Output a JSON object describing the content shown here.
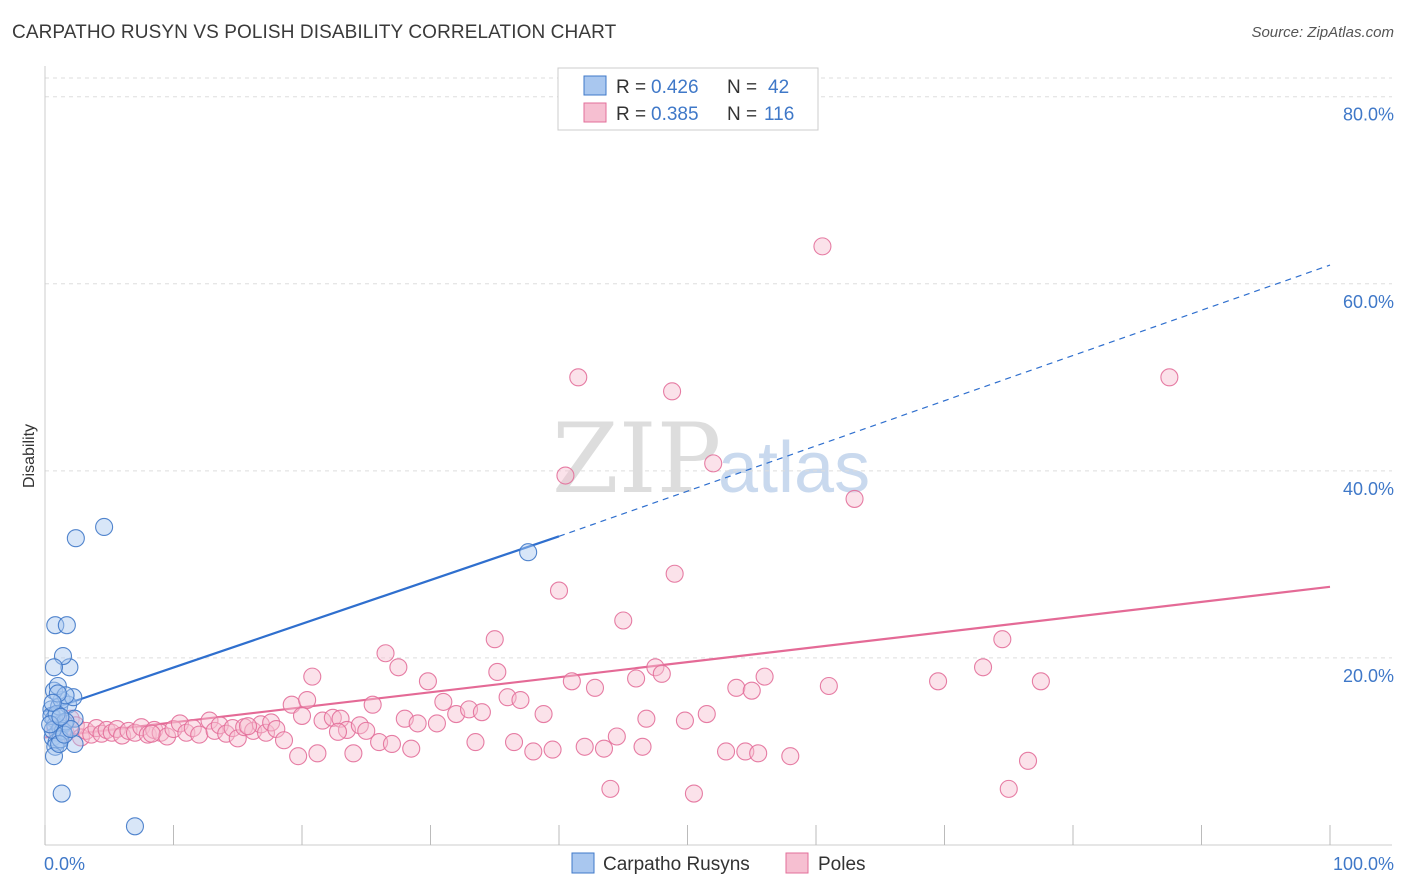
{
  "title": "CARPATHO RUSYN VS POLISH DISABILITY CORRELATION CHART",
  "source": "Source: ZipAtlas.com",
  "watermark": {
    "zip": "ZIP",
    "atlas": "atlas"
  },
  "colors": {
    "blue": "#3f78c8",
    "blue_fill": "#a9c7ef",
    "blue_line": "#2f6fce",
    "pink": "#e36f9a",
    "pink_fill": "#f6bfd1",
    "pink_line": "#e46a96",
    "grid": "#dddddd",
    "axis_label": "#3f78c8"
  },
  "legend": {
    "rows": [
      {
        "r_label": "R = ",
        "r_value": "0.426",
        "n_label": "N = ",
        "n_value": "42",
        "series": "blue"
      },
      {
        "r_label": "R = ",
        "r_value": "0.385",
        "n_label": "N = ",
        "n_value": "116",
        "series": "pink"
      }
    ]
  },
  "chart_data": {
    "type": "scatter",
    "title": "CARPATHO RUSYN VS POLISH DISABILITY CORRELATION CHART",
    "xlabel": "",
    "ylabel": "Disability",
    "xlim": [
      0,
      100
    ],
    "ylim": [
      0,
      82
    ],
    "x_ticks": [
      0,
      10,
      20,
      30,
      40,
      50,
      60,
      70,
      80,
      90,
      100
    ],
    "x_tick_labels": {
      "0": "0.0%",
      "100": "100.0%"
    },
    "y_ticks": [
      20,
      40,
      60,
      80
    ],
    "y_tick_labels": [
      "20.0%",
      "40.0%",
      "60.0%",
      "80.0%"
    ],
    "grid": true,
    "legend_placement": "top-center",
    "series": [
      {
        "name": "Carpatho Rusyns",
        "color": "blue",
        "trend": {
          "x0": 0,
          "y0": 14.3,
          "x1": 40,
          "y1": 33.0,
          "dashed_to_x": 100,
          "dashed_to_y": 62
        },
        "points": [
          [
            0.5,
            14.5
          ],
          [
            0.7,
            13.5
          ],
          [
            0.8,
            12.8
          ],
          [
            1.0,
            12.0
          ],
          [
            0.6,
            11.5
          ],
          [
            0.9,
            11.0
          ],
          [
            1.2,
            12.5
          ],
          [
            1.5,
            13.0
          ],
          [
            0.5,
            13.8
          ],
          [
            1.1,
            14.8
          ],
          [
            1.3,
            15.5
          ],
          [
            1.8,
            15.0
          ],
          [
            2.2,
            15.8
          ],
          [
            0.7,
            16.5
          ],
          [
            1.0,
            17.0
          ],
          [
            1.6,
            16.0
          ],
          [
            1.4,
            12.2
          ],
          [
            0.8,
            10.5
          ],
          [
            2.3,
            10.8
          ],
          [
            0.7,
            9.5
          ],
          [
            1.9,
            19.0
          ],
          [
            1.4,
            20.2
          ],
          [
            0.8,
            23.5
          ],
          [
            1.7,
            23.5
          ],
          [
            0.7,
            19.0
          ],
          [
            2.3,
            13.5
          ],
          [
            1.2,
            11.3
          ],
          [
            0.6,
            12.3
          ],
          [
            1.1,
            10.8
          ],
          [
            1.3,
            5.5
          ],
          [
            7.0,
            2.0
          ],
          [
            4.6,
            34.0
          ],
          [
            2.4,
            32.8
          ],
          [
            37.6,
            31.3
          ],
          [
            1.6,
            13.2
          ],
          [
            0.9,
            14.0
          ],
          [
            0.4,
            12.9
          ],
          [
            1.0,
            16.2
          ],
          [
            1.5,
            11.8
          ],
          [
            2.0,
            12.4
          ],
          [
            0.6,
            15.2
          ],
          [
            1.2,
            13.7
          ]
        ]
      },
      {
        "name": "Poles",
        "color": "pink",
        "trend": {
          "x0": 0,
          "y0": 11.5,
          "x1": 100,
          "y1": 27.6
        },
        "points": [
          [
            0.8,
            12.5
          ],
          [
            1.2,
            13.0
          ],
          [
            1.6,
            12.0
          ],
          [
            2.0,
            13.5
          ],
          [
            2.4,
            12.8
          ],
          [
            2.8,
            11.5
          ],
          [
            3.2,
            12.2
          ],
          [
            3.6,
            11.8
          ],
          [
            4.0,
            12.5
          ],
          [
            4.4,
            11.9
          ],
          [
            4.8,
            12.3
          ],
          [
            5.2,
            12.0
          ],
          [
            5.6,
            12.4
          ],
          [
            6.0,
            11.7
          ],
          [
            6.5,
            12.2
          ],
          [
            7.0,
            12.0
          ],
          [
            7.5,
            12.6
          ],
          [
            8.0,
            11.8
          ],
          [
            8.5,
            12.3
          ],
          [
            9.0,
            12.0
          ],
          [
            9.5,
            11.6
          ],
          [
            10.0,
            12.4
          ],
          [
            10.5,
            13.0
          ],
          [
            11.0,
            12.0
          ],
          [
            11.5,
            12.5
          ],
          [
            12.0,
            11.8
          ],
          [
            12.8,
            13.3
          ],
          [
            13.2,
            12.2
          ],
          [
            13.6,
            12.8
          ],
          [
            14.1,
            11.9
          ],
          [
            14.6,
            12.5
          ],
          [
            15.0,
            11.4
          ],
          [
            15.5,
            12.6
          ],
          [
            16.2,
            12.2
          ],
          [
            16.8,
            12.9
          ],
          [
            17.2,
            12.0
          ],
          [
            17.6,
            13.1
          ],
          [
            18.0,
            12.4
          ],
          [
            18.6,
            11.2
          ],
          [
            19.2,
            15.0
          ],
          [
            19.7,
            9.5
          ],
          [
            20.4,
            15.5
          ],
          [
            20.8,
            18.0
          ],
          [
            21.2,
            9.8
          ],
          [
            21.6,
            13.3
          ],
          [
            22.4,
            13.6
          ],
          [
            23.0,
            13.5
          ],
          [
            23.5,
            12.3
          ],
          [
            24.0,
            9.8
          ],
          [
            24.5,
            12.8
          ],
          [
            25.0,
            12.2
          ],
          [
            25.5,
            15.0
          ],
          [
            26.0,
            11.0
          ],
          [
            26.5,
            20.5
          ],
          [
            27.0,
            10.8
          ],
          [
            27.5,
            19.0
          ],
          [
            28.0,
            13.5
          ],
          [
            28.5,
            10.3
          ],
          [
            29.0,
            13.0
          ],
          [
            29.8,
            17.5
          ],
          [
            31.0,
            15.3
          ],
          [
            32.0,
            14.0
          ],
          [
            33.0,
            14.5
          ],
          [
            33.5,
            11.0
          ],
          [
            34.0,
            14.2
          ],
          [
            35.0,
            22.0
          ],
          [
            35.2,
            18.5
          ],
          [
            36.0,
            15.8
          ],
          [
            36.5,
            11.0
          ],
          [
            37.0,
            15.5
          ],
          [
            38.0,
            10.0
          ],
          [
            38.8,
            14.0
          ],
          [
            39.5,
            10.2
          ],
          [
            40.0,
            27.2
          ],
          [
            40.5,
            39.5
          ],
          [
            41.0,
            17.5
          ],
          [
            41.5,
            50.0
          ],
          [
            42.0,
            10.5
          ],
          [
            42.8,
            16.8
          ],
          [
            43.5,
            10.3
          ],
          [
            44.0,
            6.0
          ],
          [
            45.0,
            24.0
          ],
          [
            46.0,
            17.8
          ],
          [
            46.5,
            10.5
          ],
          [
            46.8,
            13.5
          ],
          [
            47.5,
            19.0
          ],
          [
            48.0,
            18.3
          ],
          [
            48.8,
            48.5
          ],
          [
            49.0,
            29.0
          ],
          [
            49.8,
            13.3
          ],
          [
            50.5,
            5.5
          ],
          [
            51.5,
            14.0
          ],
          [
            52.0,
            40.8
          ],
          [
            53.0,
            10.0
          ],
          [
            53.8,
            16.8
          ],
          [
            54.5,
            10.0
          ],
          [
            55.0,
            16.5
          ],
          [
            55.5,
            9.8
          ],
          [
            56.0,
            18.0
          ],
          [
            58.0,
            9.5
          ],
          [
            60.5,
            64.0
          ],
          [
            61.0,
            17.0
          ],
          [
            63.0,
            37.0
          ],
          [
            69.5,
            17.5
          ],
          [
            73.0,
            19.0
          ],
          [
            74.5,
            22.0
          ],
          [
            75.0,
            6.0
          ],
          [
            76.5,
            9.0
          ],
          [
            77.5,
            17.5
          ],
          [
            87.5,
            50.0
          ],
          [
            8.3,
            11.9
          ],
          [
            15.8,
            12.7
          ],
          [
            20.0,
            13.8
          ],
          [
            30.5,
            13.0
          ],
          [
            44.5,
            11.6
          ],
          [
            22.8,
            12.1
          ]
        ]
      }
    ]
  },
  "bottom_legend": [
    {
      "label": "Carpatho Rusyns",
      "color": "blue"
    },
    {
      "label": "Poles",
      "color": "pink"
    }
  ]
}
